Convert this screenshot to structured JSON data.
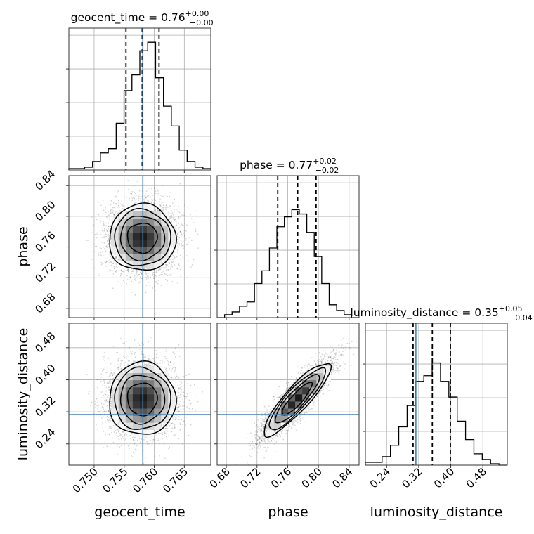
{
  "chart_data": {
    "type": "corner",
    "parameters": [
      {
        "name": "geocent_time",
        "label": "geocent_time",
        "range": [
          0.7458,
          0.7694
        ],
        "ticks": [
          0.75,
          0.755,
          0.76,
          0.765
        ],
        "tick_labels": [
          "0.750",
          "0.755",
          "0.760",
          "0.765"
        ],
        "truth": 0.7581,
        "title_median": "0.76",
        "title_plus": "+0.00",
        "title_minus": "−0.00",
        "quantiles": [
          0.7553,
          0.758,
          0.7608
        ]
      },
      {
        "name": "phase",
        "label": "phase",
        "range": [
          0.668,
          0.853
        ],
        "ticks": [
          0.68,
          0.72,
          0.76,
          0.8,
          0.84
        ],
        "tick_labels": [
          "0.68",
          "0.72",
          "0.76",
          "0.80",
          "0.84"
        ],
        "truth": null,
        "title_median": "0.77",
        "title_plus": "+0.02",
        "title_minus": "−0.02",
        "quantiles": [
          0.747,
          0.773,
          0.797
        ]
      },
      {
        "name": "luminosity_distance",
        "label": "luminosity_distance",
        "range": [
          0.187,
          0.541
        ],
        "ticks": [
          0.24,
          0.32,
          0.4,
          0.48
        ],
        "tick_labels": [
          "0.24",
          "0.32",
          "0.40",
          "0.48"
        ],
        "truth": 0.313,
        "title_median": "0.35",
        "title_plus": "+0.05",
        "title_minus": "−0.04",
        "quantiles": [
          0.306,
          0.354,
          0.399
        ]
      }
    ],
    "histograms": {
      "geocent_time": [
        0.01,
        0.01,
        0.02,
        0.06,
        0.12,
        0.15,
        0.33,
        0.56,
        0.67,
        0.84,
        0.9,
        0.65,
        0.45,
        0.31,
        0.14,
        0.06,
        0.02,
        0.01
      ],
      "phase": [
        0.0,
        0.02,
        0.04,
        0.08,
        0.11,
        0.24,
        0.33,
        0.49,
        0.64,
        0.71,
        0.76,
        0.73,
        0.6,
        0.43,
        0.24,
        0.09,
        0.05,
        0.02,
        0.0
      ],
      "luminosity_distance": [
        0.02,
        0.02,
        0.06,
        0.14,
        0.27,
        0.42,
        0.59,
        0.63,
        0.72,
        0.59,
        0.48,
        0.31,
        0.18,
        0.08,
        0.04,
        0.01,
        0.0
      ]
    },
    "joint": [
      {
        "x": "geocent_time",
        "y": "phase",
        "mean": [
          0.758,
          0.772
        ],
        "sd": [
          0.0028,
          0.022
        ],
        "corr": 0.0
      },
      {
        "x": "geocent_time",
        "y": "luminosity_distance",
        "mean": [
          0.758,
          0.352
        ],
        "sd": [
          0.0028,
          0.046
        ],
        "corr": 0.0
      },
      {
        "x": "phase",
        "y": "luminosity_distance",
        "mean": [
          0.772,
          0.352
        ],
        "sd": [
          0.022,
          0.046
        ],
        "corr": 0.88
      }
    ],
    "truth_color": "#4682b4",
    "grid": true
  }
}
